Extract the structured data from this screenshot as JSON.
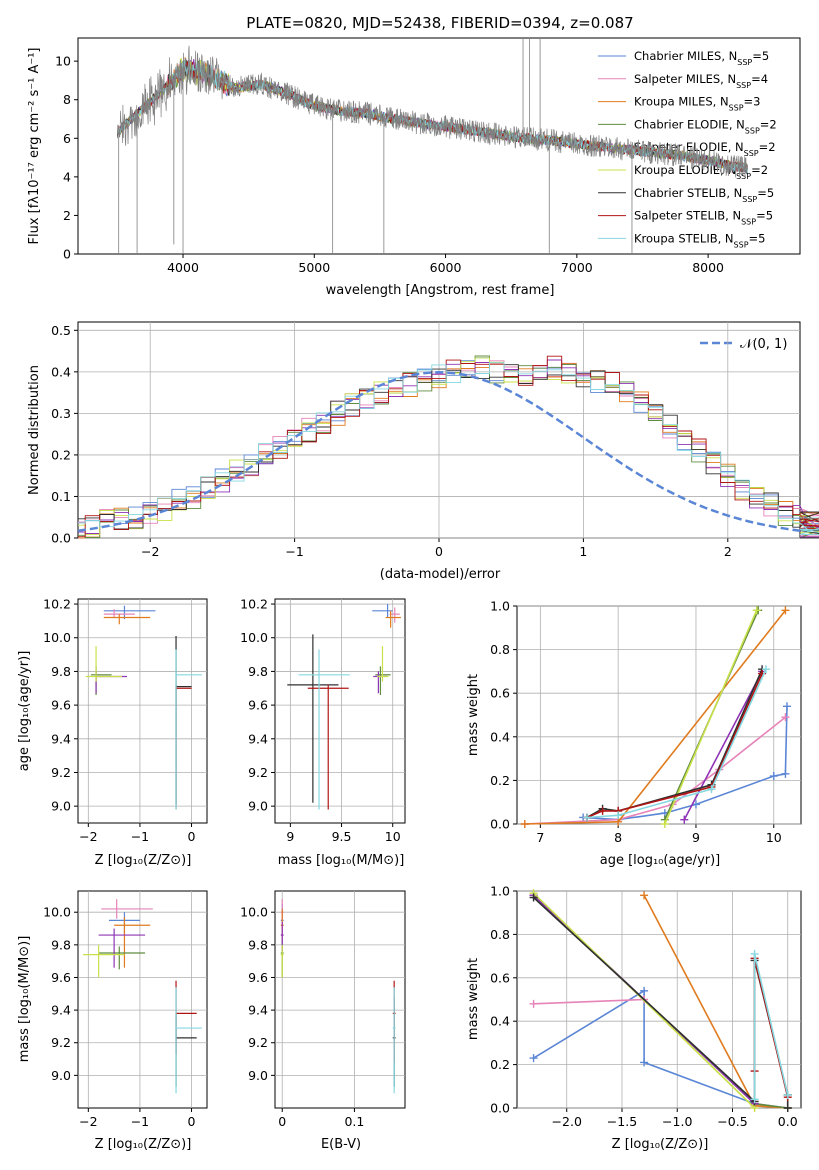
{
  "title": "PLATE=0820, MJD=52438, FIBERID=0394, z=0.087",
  "models": [
    {
      "name": "Chabrier MILES",
      "nssp": "5",
      "color": "#5b86d6"
    },
    {
      "name": "Salpeter MILES",
      "nssp": "4",
      "color": "#e683b8"
    },
    {
      "name": "Kroupa MILES",
      "nssp": "3",
      "color": "#e07b1f"
    },
    {
      "name": "Chabrier ELODIE",
      "nssp": "2",
      "color": "#5f8c3f"
    },
    {
      "name": "Salpeter ELODIE",
      "nssp": "2",
      "color": "#8f35b5"
    },
    {
      "name": "Kroupa ELODIE",
      "nssp": "2",
      "color": "#c9e04a"
    },
    {
      "name": "Chabrier STELIB",
      "nssp": "5",
      "color": "#303030"
    },
    {
      "name": "Salpeter STELIB",
      "nssp": "5",
      "color": "#b01515"
    },
    {
      "name": "Kroupa STELIB",
      "nssp": "5",
      "color": "#85d8e0"
    }
  ],
  "data_color": "#808080",
  "spectrum": {
    "xlabel": "wavelength [Angstrom, rest frame]",
    "ylabel": "Flux [fλ10⁻¹⁷ erg cm⁻² s⁻¹ A⁻¹]",
    "xlim": [
      3200,
      8700
    ],
    "ylim": [
      0,
      11.2
    ],
    "xticks": [
      4000,
      5000,
      6000,
      7000,
      8000
    ],
    "yticks": [
      0,
      2,
      4,
      6,
      8,
      10
    ]
  },
  "residuals": {
    "xlabel": "(data-model)/error",
    "ylabel": "Normed distribution",
    "xlim": [
      -2.5,
      2.5
    ],
    "ylim": [
      0,
      0.52
    ],
    "xticks": [
      -2,
      -1,
      0,
      1,
      2
    ],
    "yticks": [
      0.0,
      0.1,
      0.2,
      0.3,
      0.4,
      0.5
    ],
    "gaussian_label": "𝒩(0, 1)"
  },
  "labels": {
    "age": "age  [log₁₀(age/yr)]",
    "Z": "Z [log₁₀(Z/Z⊙)]",
    "mass": "mass [log₁₀(M/M⊙)]",
    "mass_weight": "mass weight",
    "ebv": "E(B-V)"
  },
  "chart_data": [
    {
      "type": "line",
      "title": "PLATE=0820, MJD=52438, FIBERID=0394, z=0.087",
      "xlabel": "wavelength [Angstrom, rest frame]",
      "ylabel": "Flux",
      "xlim": [
        3200,
        8700
      ],
      "ylim": [
        0,
        11.2
      ],
      "continuum": [
        [
          3500,
          6.3
        ],
        [
          3700,
          7.6
        ],
        [
          3900,
          8.8
        ],
        [
          4000,
          9.6
        ],
        [
          4200,
          9.3
        ],
        [
          4400,
          8.6
        ],
        [
          4600,
          8.8
        ],
        [
          4800,
          8.3
        ],
        [
          5000,
          7.7
        ],
        [
          5200,
          7.4
        ],
        [
          5400,
          7.3
        ],
        [
          5600,
          7.0
        ],
        [
          5800,
          6.8
        ],
        [
          6000,
          6.6
        ],
        [
          6200,
          6.4
        ],
        [
          6400,
          6.2
        ],
        [
          6600,
          6.0
        ],
        [
          6800,
          5.9
        ],
        [
          7000,
          5.7
        ],
        [
          7200,
          5.55
        ],
        [
          7400,
          5.4
        ],
        [
          7600,
          5.25
        ],
        [
          7800,
          5.1
        ],
        [
          8000,
          4.85
        ],
        [
          8200,
          4.55
        ],
        [
          8300,
          4.45
        ]
      ]
    },
    {
      "type": "line",
      "xlabel": "(data-model)/error",
      "ylabel": "Normed distribution",
      "xlim": [
        -2.5,
        2.5
      ],
      "ylim": [
        0,
        0.52
      ],
      "bin_width": 0.1,
      "histogram_bins": [
        0.02,
        0.03,
        0.04,
        0.045,
        0.05,
        0.06,
        0.07,
        0.09,
        0.1,
        0.12,
        0.14,
        0.16,
        0.18,
        0.2,
        0.22,
        0.24,
        0.26,
        0.28,
        0.3,
        0.32,
        0.34,
        0.35,
        0.36,
        0.37,
        0.38,
        0.39,
        0.4,
        0.4,
        0.41,
        0.4,
        0.4,
        0.39,
        0.4,
        0.41,
        0.4,
        0.39,
        0.38,
        0.37,
        0.35,
        0.33,
        0.3,
        0.27,
        0.24,
        0.21,
        0.18,
        0.15,
        0.12,
        0.1,
        0.08,
        0.06,
        0.05,
        0.04,
        0.035,
        0.03,
        0.025
      ]
    },
    {
      "type": "scatter",
      "xlabel": "Z",
      "ylabel": "age",
      "xlim": [
        -2.2,
        0.3
      ],
      "ylim": [
        8.9,
        10.23
      ],
      "points": [
        [
          -1.3,
          10.16
        ],
        [
          -1.5,
          10.14
        ],
        [
          -1.4,
          10.12
        ],
        [
          -1.85,
          9.78
        ],
        [
          -1.85,
          9.77
        ],
        [
          -1.85,
          9.77
        ],
        [
          -0.3,
          9.71
        ],
        [
          -0.3,
          9.7
        ],
        [
          -0.3,
          9.78
        ]
      ]
    },
    {
      "type": "scatter",
      "xlabel": "mass",
      "ylabel": "age",
      "xlim": [
        8.85,
        10.12
      ],
      "ylim": [
        8.9,
        10.23
      ],
      "points": [
        [
          9.95,
          10.16
        ],
        [
          10.02,
          10.14
        ],
        [
          9.98,
          10.12
        ],
        [
          9.88,
          9.78
        ],
        [
          9.86,
          9.77
        ],
        [
          9.9,
          9.77
        ],
        [
          9.22,
          9.72
        ],
        [
          9.37,
          9.7
        ],
        [
          9.28,
          9.78
        ]
      ]
    },
    {
      "type": "line",
      "xlabel": "age",
      "ylabel": "mass weight",
      "xlim": [
        6.7,
        10.35
      ],
      "ylim": [
        0,
        1
      ],
      "series": [
        {
          "name": "Chabrier MILES",
          "x": [
            7.55,
            8.0,
            8.6,
            9.0,
            10.0,
            10.15,
            10.17
          ],
          "y": [
            0.03,
            0.02,
            0.05,
            0.09,
            0.22,
            0.23,
            0.54
          ]
        },
        {
          "name": "Salpeter MILES",
          "x": [
            6.8,
            8.0,
            8.7,
            9.3,
            10.15
          ],
          "y": [
            0.0,
            0.02,
            0.09,
            0.25,
            0.49
          ]
        },
        {
          "name": "Kroupa MILES",
          "x": [
            6.8,
            8.0,
            10.15
          ],
          "y": [
            0.0,
            0.01,
            0.98
          ]
        },
        {
          "name": "Chabrier ELODIE",
          "x": [
            8.6,
            9.8
          ],
          "y": [
            0.02,
            0.98
          ]
        },
        {
          "name": "Salpeter ELODIE",
          "x": [
            8.85,
            9.85
          ],
          "y": [
            0.02,
            0.7
          ]
        },
        {
          "name": "Kroupa ELODIE",
          "x": [
            8.6,
            9.78
          ],
          "y": [
            0.0,
            0.98
          ]
        },
        {
          "name": "Chabrier STELIB",
          "x": [
            7.6,
            7.8,
            8.0,
            9.2,
            9.85
          ],
          "y": [
            0.03,
            0.07,
            0.06,
            0.18,
            0.71
          ]
        },
        {
          "name": "Salpeter STELIB",
          "x": [
            7.6,
            7.8,
            8.0,
            9.2,
            9.85
          ],
          "y": [
            0.03,
            0.06,
            0.06,
            0.17,
            0.69
          ]
        },
        {
          "name": "Kroupa STELIB",
          "x": [
            7.6,
            8.0,
            9.2,
            9.9
          ],
          "y": [
            0.03,
            0.04,
            0.16,
            0.71
          ]
        }
      ]
    },
    {
      "type": "scatter",
      "xlabel": "Z",
      "ylabel": "mass",
      "xlim": [
        -2.2,
        0.3
      ],
      "ylim": [
        8.8,
        10.13
      ],
      "points": [
        [
          -1.3,
          9.95
        ],
        [
          -1.45,
          10.02
        ],
        [
          -1.3,
          9.92
        ],
        [
          -1.4,
          9.75
        ],
        [
          -1.5,
          9.86
        ],
        [
          -1.8,
          9.74
        ],
        [
          -0.3,
          9.23
        ],
        [
          -0.3,
          9.38
        ],
        [
          -0.3,
          9.29
        ]
      ]
    },
    {
      "type": "scatter",
      "xlabel": "E(B-V)",
      "ylabel": "mass",
      "xlim": [
        -0.01,
        0.17
      ],
      "ylim": [
        8.8,
        10.13
      ],
      "points": [
        [
          0.0,
          9.95
        ],
        [
          0.0,
          10.0
        ],
        [
          0.0,
          9.92
        ],
        [
          0.0,
          9.75
        ],
        [
          0.0,
          9.86
        ],
        [
          0.0,
          9.74
        ],
        [
          0.155,
          9.23
        ],
        [
          0.155,
          9.38
        ],
        [
          0.155,
          9.29
        ]
      ]
    },
    {
      "type": "line",
      "xlabel": "Z",
      "ylabel": "mass weight",
      "xlim": [
        -2.45,
        0.12
      ],
      "ylim": [
        0,
        1
      ],
      "series": [
        {
          "name": "Chabrier MILES",
          "x": [
            -2.3,
            -1.3,
            -1.3,
            -0.3,
            0.0
          ],
          "y": [
            0.23,
            0.54,
            0.21,
            0.02,
            0.0
          ]
        },
        {
          "name": "Salpeter MILES",
          "x": [
            -2.3,
            -1.3,
            -0.3,
            0.0
          ],
          "y": [
            0.48,
            0.5,
            0.02,
            0.0
          ]
        },
        {
          "name": "Kroupa MILES",
          "x": [
            -1.3,
            -0.3,
            0.0
          ],
          "y": [
            0.98,
            0.01,
            0.0
          ]
        },
        {
          "name": "Chabrier ELODIE",
          "x": [
            -2.3,
            -0.3,
            0.0
          ],
          "y": [
            0.98,
            0.02,
            0.0
          ]
        },
        {
          "name": "Salpeter ELODIE",
          "x": [
            -2.3,
            -0.3
          ],
          "y": [
            0.98,
            0.02
          ]
        },
        {
          "name": "Kroupa ELODIE",
          "x": [
            -2.3,
            -0.3
          ],
          "y": [
            0.99,
            0.0
          ]
        },
        {
          "name": "Chabrier STELIB",
          "x": [
            -2.3,
            -0.3,
            -0.3,
            0.0,
            0.0
          ],
          "y": [
            0.97,
            0.03,
            0.68,
            0.06,
            0.0
          ]
        },
        {
          "name": "Salpeter STELIB",
          "x": [
            -0.3,
            -0.3,
            0.0
          ],
          "y": [
            0.17,
            0.69,
            0.05
          ]
        },
        {
          "name": "Kroupa STELIB",
          "x": [
            -0.3,
            -0.3,
            0.0
          ],
          "y": [
            0.04,
            0.71,
            0.06
          ]
        }
      ]
    }
  ]
}
